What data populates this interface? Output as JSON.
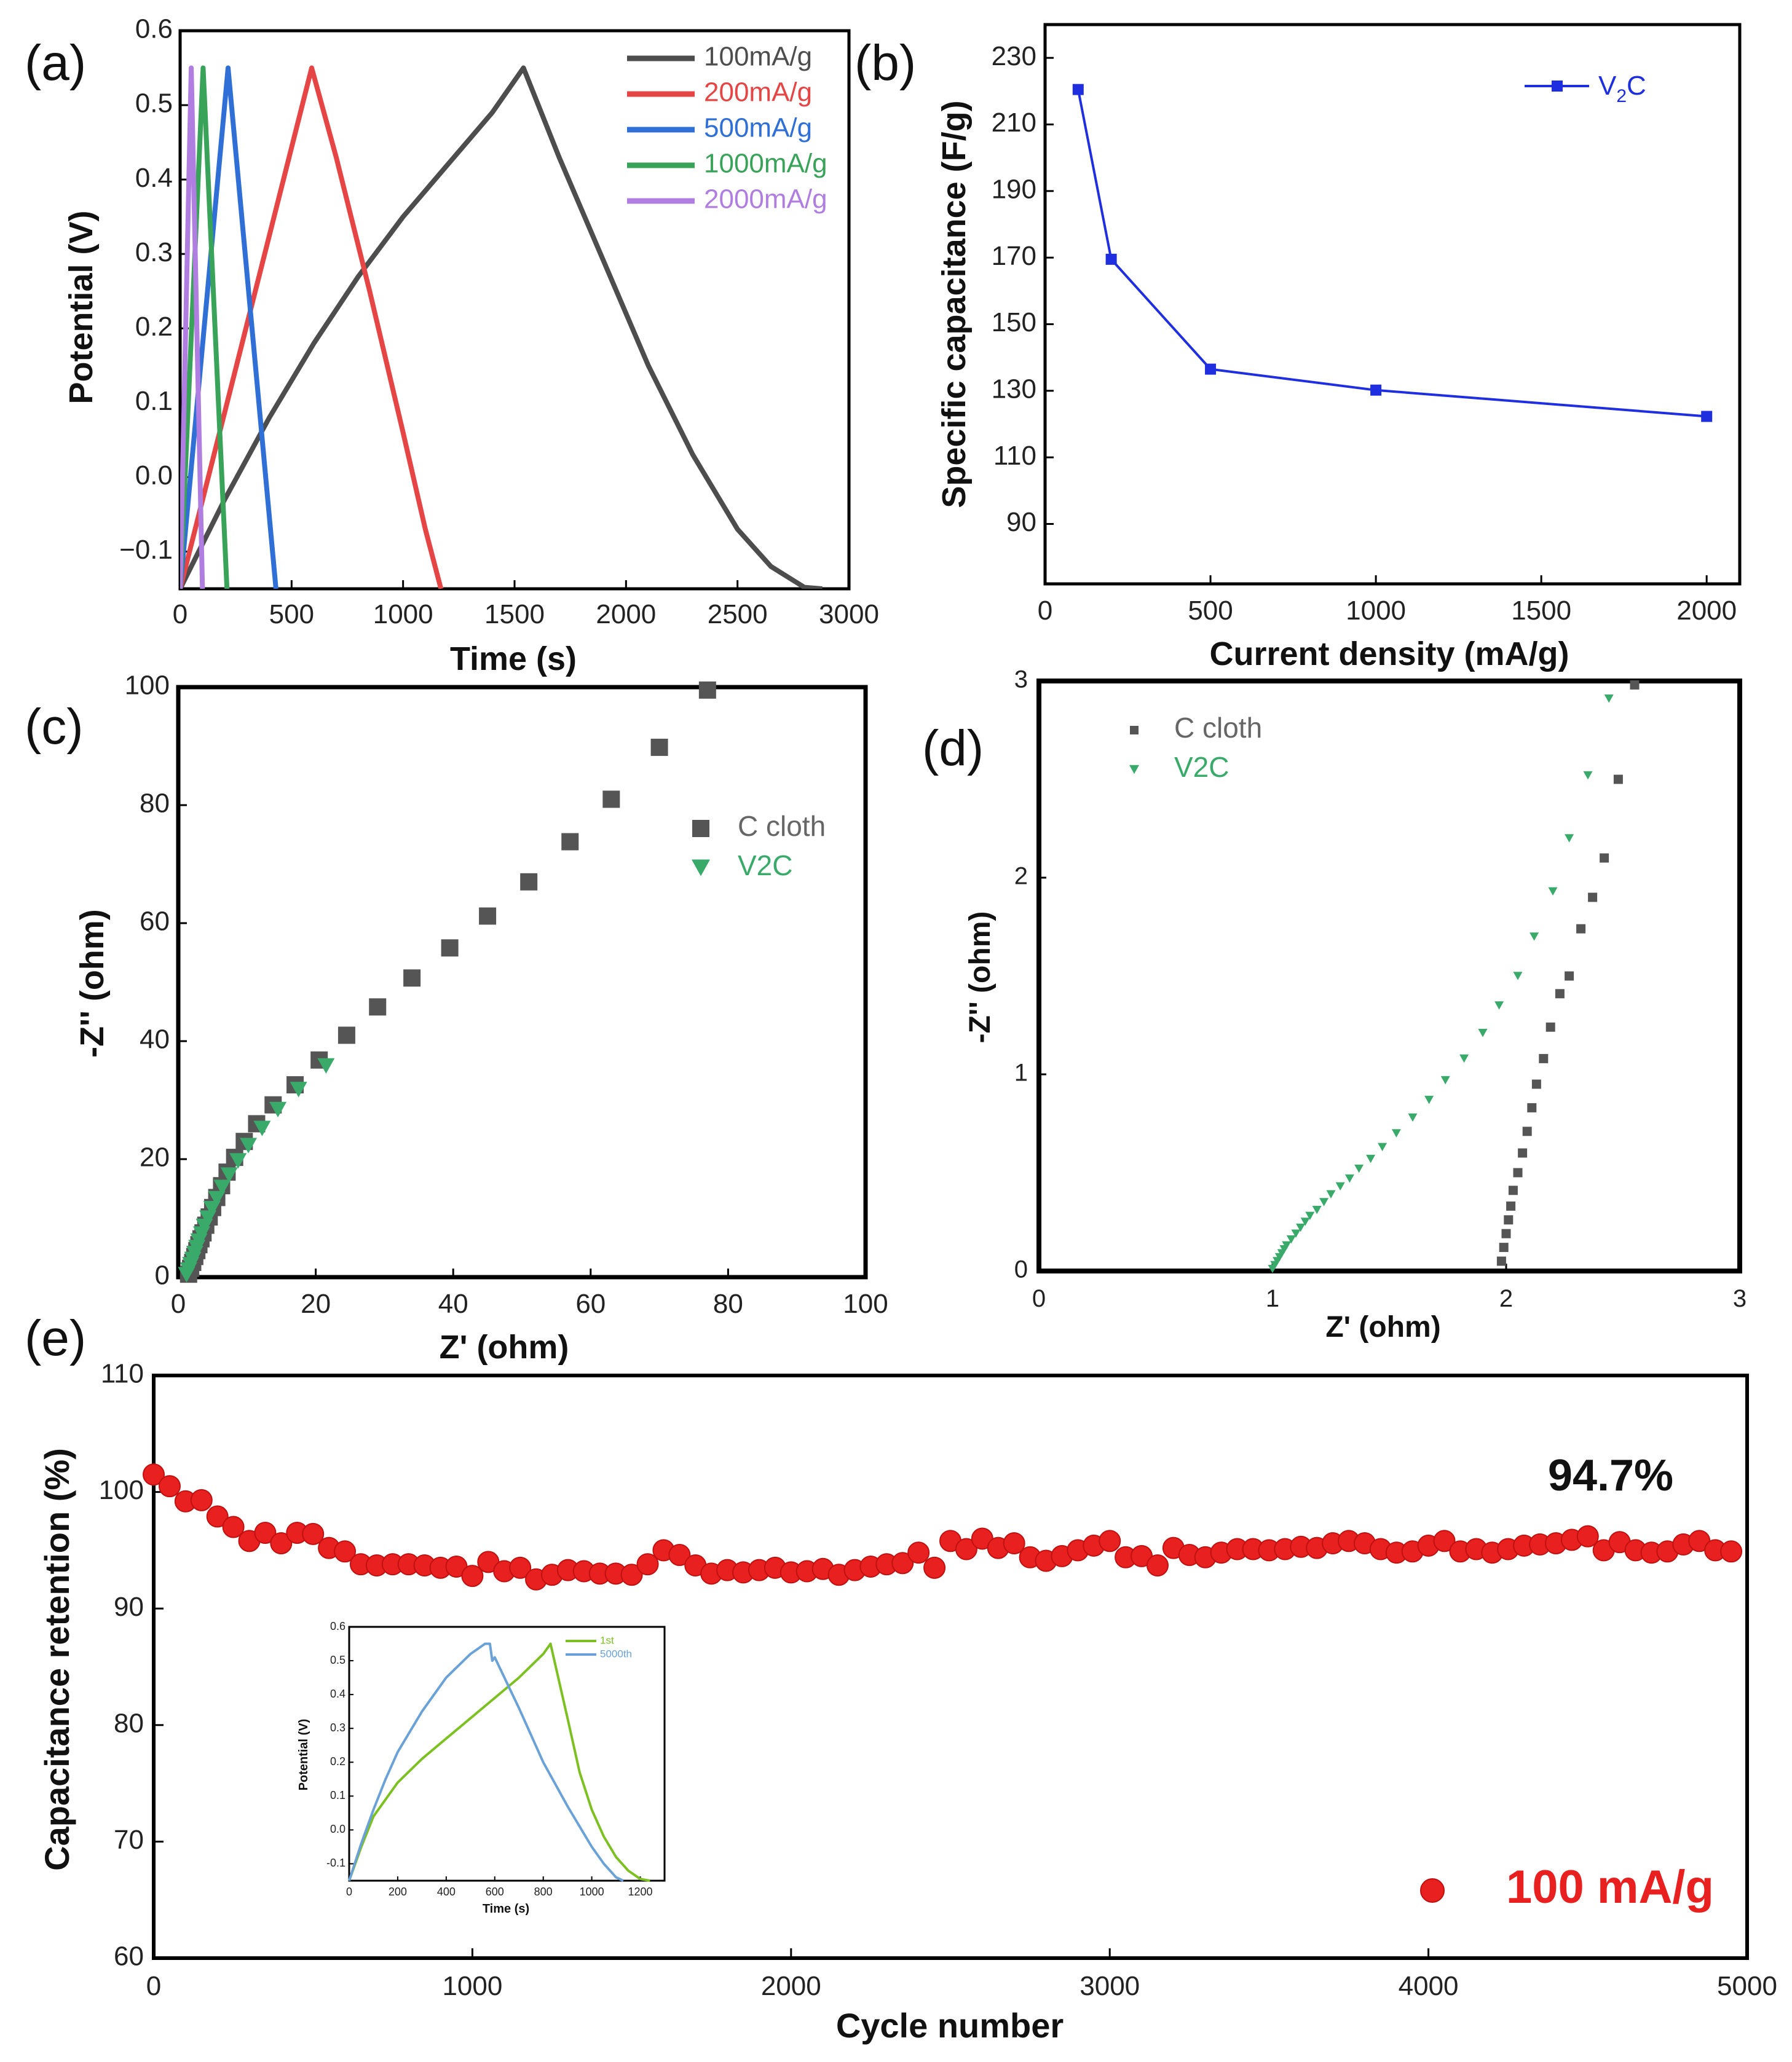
{
  "chart_data": [
    {
      "id": "a",
      "type": "line",
      "panel_label": "(a)",
      "xlabel": "Time (s)",
      "ylabel": "Potential (V)",
      "xlim": [
        0,
        3000
      ],
      "ylim": [
        -0.15,
        0.6
      ],
      "xticks": [
        "0",
        "500",
        "1000",
        "1500",
        "2000",
        "2500",
        "3000"
      ],
      "yticks": [
        "−0.1",
        "0.0",
        "0.1",
        "0.2",
        "0.3",
        "0.4",
        "0.5",
        "0.6"
      ],
      "legend": [
        "100mA/g",
        "200mA/g",
        "500mA/g",
        "1000mA/g",
        "2000mA/g"
      ],
      "series": [
        {
          "name": "100mA/g",
          "color": "#4d4d4d",
          "x": [
            0,
            200,
            400,
            600,
            800,
            1000,
            1200,
            1400,
            1540,
            1700,
            1900,
            2100,
            2300,
            2500,
            2650,
            2800,
            2880
          ],
          "y": [
            -0.15,
            -0.03,
            0.08,
            0.18,
            0.27,
            0.35,
            0.42,
            0.49,
            0.55,
            0.43,
            0.29,
            0.15,
            0.03,
            -0.07,
            -0.12,
            -0.148,
            -0.15
          ]
        },
        {
          "name": "200mA/g",
          "color": "#e64545",
          "x": [
            0,
            590,
            700,
            850,
            1000,
            1100,
            1170
          ],
          "y": [
            -0.15,
            0.55,
            0.43,
            0.25,
            0.06,
            -0.07,
            -0.15
          ]
        },
        {
          "name": "500mA/g",
          "color": "#2f6fd6",
          "x": [
            0,
            215,
            430
          ],
          "y": [
            -0.15,
            0.55,
            -0.15
          ]
        },
        {
          "name": "1000mA/g",
          "color": "#3aa35a",
          "x": [
            0,
            103,
            210
          ],
          "y": [
            -0.15,
            0.55,
            -0.15
          ]
        },
        {
          "name": "2000mA/g",
          "color": "#b07ee0",
          "x": [
            0,
            50,
            100
          ],
          "y": [
            -0.15,
            0.55,
            -0.15
          ]
        }
      ]
    },
    {
      "id": "b",
      "type": "line",
      "panel_label": "(b)",
      "xlabel": "Current density (mA/g)",
      "ylabel": "Specific capacitance (F/g)",
      "xlim": [
        0,
        2100
      ],
      "ylim": [
        72,
        240
      ],
      "xticks": [
        "0",
        "500",
        "1000",
        "1500",
        "2000"
      ],
      "yticks": [
        "90",
        "110",
        "130",
        "150",
        "170",
        "190",
        "210",
        "230"
      ],
      "legend_prefix": "V",
      "legend_sub": "2",
      "legend_suffix": "C",
      "series": [
        {
          "name": "V2C",
          "color": "#1f2fe0",
          "x": [
            100,
            200,
            500,
            1000,
            2000
          ],
          "y": [
            220.5,
            169.5,
            136.5,
            130.2,
            122.3
          ]
        }
      ]
    },
    {
      "id": "c",
      "type": "scatter",
      "panel_label": "(c)",
      "xlabel": "Z' (ohm)",
      "ylabel": "-Z'' (ohm)",
      "xlim": [
        0,
        100
      ],
      "ylim": [
        0,
        100
      ],
      "xticks": [
        "0",
        "20",
        "40",
        "60",
        "80",
        "100"
      ],
      "yticks": [
        "0",
        "20",
        "40",
        "60",
        "80",
        "100"
      ],
      "legend": [
        "C cloth",
        "V2C"
      ],
      "series": [
        {
          "name": "C cloth",
          "color": "#555555",
          "marker": "square",
          "x": [
            1.5,
            1.8,
            2.1,
            2.4,
            2.7,
            3.0,
            3.3,
            3.6,
            4.0,
            4.5,
            5.0,
            5.6,
            6.3,
            7.1,
            8.2,
            9.6,
            11.4,
            13.8,
            17.0,
            20.5,
            24.5,
            29.0,
            34.0,
            39.5,
            45.0,
            51.0,
            57.0,
            63.0,
            70.0,
            77.0
          ],
          "y": [
            0.5,
            1.5,
            2.5,
            3.5,
            4.5,
            5.5,
            6.5,
            7.5,
            8.8,
            10.2,
            11.8,
            13.5,
            15.5,
            17.8,
            20.3,
            23.0,
            26.0,
            29.2,
            32.6,
            36.8,
            41.0,
            45.8,
            50.7,
            55.8,
            61.2,
            67.0,
            73.8,
            81.0,
            89.8,
            99.5
          ]
        },
        {
          "name": "V2C",
          "color": "#3aaa6a",
          "marker": "triangle-down",
          "x": [
            1.2,
            1.5,
            1.8,
            2.1,
            2.4,
            2.7,
            3.0,
            3.4,
            3.8,
            4.3,
            4.9,
            5.6,
            6.4,
            7.4,
            8.7,
            10.2,
            12.2,
            14.5,
            17.5,
            21.5
          ],
          "y": [
            0.4,
            1.2,
            2.1,
            3.0,
            4.0,
            5.0,
            6.1,
            7.3,
            8.6,
            10.0,
            11.6,
            13.3,
            15.2,
            17.3,
            19.7,
            22.3,
            25.2,
            28.4,
            31.8,
            35.8
          ]
        }
      ]
    },
    {
      "id": "d",
      "type": "scatter",
      "panel_label": "(d)",
      "xlabel": "Z' (ohm)",
      "ylabel": "-Z'' (ohm)",
      "xlim": [
        0,
        3
      ],
      "ylim": [
        0,
        3
      ],
      "xticks": [
        "0",
        "1",
        "2",
        "3"
      ],
      "yticks": [
        "0",
        "1",
        "2",
        "3"
      ],
      "legend": [
        "C cloth",
        "V2C"
      ],
      "series": [
        {
          "name": "C cloth",
          "color": "#555555",
          "marker": "square",
          "x": [
            1.98,
            1.99,
            2.0,
            2.01,
            2.02,
            2.03,
            2.05,
            2.07,
            2.09,
            2.11,
            2.13,
            2.16,
            2.19,
            2.23,
            2.27,
            2.32,
            2.37,
            2.42,
            2.48,
            2.55
          ],
          "y": [
            0.05,
            0.12,
            0.19,
            0.26,
            0.33,
            0.41,
            0.5,
            0.6,
            0.71,
            0.83,
            0.95,
            1.08,
            1.24,
            1.41,
            1.5,
            1.74,
            1.9,
            2.1,
            2.5,
            2.98
          ]
        },
        {
          "name": "V2C",
          "color": "#3aaa6a",
          "marker": "triangle-down",
          "x": [
            1.0,
            1.01,
            1.02,
            1.03,
            1.04,
            1.05,
            1.06,
            1.08,
            1.1,
            1.12,
            1.14,
            1.16,
            1.19,
            1.22,
            1.25,
            1.29,
            1.33,
            1.37,
            1.42,
            1.47,
            1.53,
            1.6,
            1.67,
            1.74,
            1.82,
            1.9,
            1.97,
            2.05,
            2.12,
            2.2,
            2.27,
            2.35,
            2.44
          ],
          "y": [
            0.01,
            0.03,
            0.05,
            0.07,
            0.09,
            0.11,
            0.13,
            0.16,
            0.19,
            0.22,
            0.25,
            0.28,
            0.31,
            0.35,
            0.39,
            0.43,
            0.47,
            0.52,
            0.57,
            0.63,
            0.7,
            0.78,
            0.87,
            0.97,
            1.08,
            1.21,
            1.35,
            1.5,
            1.7,
            1.93,
            2.2,
            2.52,
            2.91
          ]
        }
      ]
    },
    {
      "id": "e",
      "type": "scatter",
      "panel_label": "(e)",
      "xlabel": "Cycle number",
      "ylabel": "Capacitance retention (%)",
      "xlim": [
        0,
        5000
      ],
      "ylim": [
        60,
        110
      ],
      "xticks": [
        "0",
        "1000",
        "2000",
        "3000",
        "4000",
        "5000"
      ],
      "yticks": [
        "60",
        "70",
        "80",
        "90",
        "100",
        "110"
      ],
      "annotation": "94.7%",
      "legend": [
        "100 mA/g"
      ],
      "series": [
        {
          "name": "100 mA/g",
          "color": "#e82020",
          "marker": "circle",
          "x": [
            0,
            50,
            100,
            150,
            200,
            250,
            300,
            350,
            400,
            450,
            500,
            550,
            600,
            650,
            700,
            750,
            800,
            850,
            900,
            950,
            1000,
            1050,
            1100,
            1150,
            1200,
            1250,
            1300,
            1350,
            1400,
            1450,
            1500,
            1550,
            1600,
            1650,
            1700,
            1750,
            1800,
            1850,
            1900,
            1950,
            2000,
            2050,
            2100,
            2150,
            2200,
            2250,
            2300,
            2350,
            2400,
            2450,
            2500,
            2550,
            2600,
            2650,
            2700,
            2750,
            2800,
            2850,
            2900,
            2950,
            3000,
            3050,
            3100,
            3150,
            3200,
            3250,
            3300,
            3350,
            3400,
            3450,
            3500,
            3550,
            3600,
            3650,
            3700,
            3750,
            3800,
            3850,
            3900,
            3950,
            4000,
            4050,
            4100,
            4150,
            4200,
            4250,
            4300,
            4350,
            4400,
            4450,
            4500,
            4550,
            4600,
            4650,
            4700,
            4750,
            4800,
            4850,
            4900,
            4950
          ],
          "y": [
            101.5,
            100.5,
            99.2,
            99.3,
            97.9,
            97.0,
            95.8,
            96.5,
            95.6,
            96.5,
            96.4,
            95.2,
            94.9,
            93.8,
            93.7,
            93.8,
            93.8,
            93.7,
            93.5,
            93.6,
            92.8,
            94.0,
            93.2,
            93.5,
            92.5,
            92.9,
            93.3,
            93.2,
            93.0,
            93.0,
            92.9,
            93.8,
            95.0,
            94.6,
            93.7,
            93.0,
            93.3,
            93.1,
            93.3,
            93.5,
            93.1,
            93.2,
            93.4,
            92.9,
            93.3,
            93.6,
            93.8,
            93.9,
            94.8,
            93.5,
            95.8,
            95.1,
            96.0,
            95.2,
            95.6,
            94.4,
            94.1,
            94.5,
            95.0,
            95.4,
            95.8,
            94.4,
            94.5,
            93.7,
            95.2,
            94.6,
            94.4,
            94.8,
            95.1,
            95.1,
            95.0,
            95.1,
            95.3,
            95.2,
            95.6,
            95.8,
            95.6,
            95.1,
            94.8,
            94.9,
            95.4,
            95.8,
            94.9,
            95.1,
            94.8,
            95.1,
            95.4,
            95.5,
            95.6,
            95.9,
            96.2,
            95.0,
            95.7,
            95.0,
            94.8,
            94.9,
            95.5,
            95.8,
            95.0,
            94.9
          ]
        }
      ]
    },
    {
      "id": "e-inset",
      "type": "line",
      "xlabel": "Time (s)",
      "ylabel": "Potential (V)",
      "xlim": [
        0,
        1300
      ],
      "ylim": [
        -0.15,
        0.6
      ],
      "xticks": [
        "0",
        "200",
        "400",
        "600",
        "800",
        "1000",
        "1200"
      ],
      "yticks": [
        "-0.1",
        "0.0",
        "0.1",
        "0.2",
        "0.3",
        "0.4",
        "0.5",
        "0.6"
      ],
      "legend": [
        "1st",
        "5000th"
      ],
      "series": [
        {
          "name": "1st",
          "color": "#7cc022",
          "x": [
            0,
            50,
            100,
            200,
            300,
            400,
            500,
            600,
            700,
            800,
            830,
            900,
            950,
            1000,
            1050,
            1100,
            1150,
            1200,
            1240
          ],
          "y": [
            -0.15,
            -0.05,
            0.04,
            0.14,
            0.21,
            0.27,
            0.33,
            0.39,
            0.45,
            0.52,
            0.55,
            0.33,
            0.17,
            0.06,
            -0.02,
            -0.08,
            -0.12,
            -0.145,
            -0.15
          ]
        },
        {
          "name": "5000th",
          "color": "#6aa2d8",
          "x": [
            0,
            50,
            100,
            150,
            200,
            300,
            400,
            500,
            560,
            580,
            590,
            600,
            700,
            800,
            900,
            1000,
            1050,
            1100,
            1130
          ],
          "y": [
            -0.15,
            -0.04,
            0.06,
            0.15,
            0.23,
            0.35,
            0.45,
            0.52,
            0.55,
            0.55,
            0.5,
            0.51,
            0.36,
            0.2,
            0.07,
            -0.05,
            -0.1,
            -0.14,
            -0.15
          ]
        }
      ]
    }
  ]
}
